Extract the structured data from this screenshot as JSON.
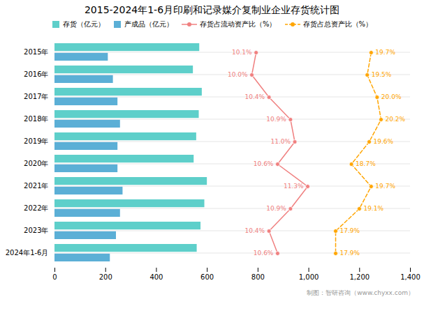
{
  "chart_data": {
    "type": "bar",
    "orientation": "horizontal",
    "title": "2015-2024年1-6月印刷和记录媒介复制业企业存货统计图",
    "categories": [
      "2015年",
      "2016年",
      "2017年",
      "2018年",
      "2019年",
      "2020年",
      "2021年",
      "2022年",
      "2023年",
      "2024年1-6月"
    ],
    "series": [
      {
        "name": "存货（亿元）",
        "color": "#5ECFCA",
        "values": [
          570,
          545,
          580,
          568,
          558,
          548,
          600,
          590,
          575,
          560
        ]
      },
      {
        "name": "产成品（亿元）",
        "color": "#5BAFD6",
        "values": [
          210,
          230,
          248,
          258,
          248,
          248,
          268,
          258,
          242,
          218
        ]
      },
      {
        "name": "存货占流动资产比（%）",
        "type": "line",
        "color": "#F08080",
        "marker": "circle",
        "line_style": "solid",
        "values": [
          10.1,
          10.0,
          10.4,
          10.9,
          11.0,
          10.6,
          11.3,
          10.9,
          10.4,
          10.6
        ],
        "value_labels": [
          "10.1%",
          "10.0%",
          "10.4%",
          "10.9%",
          "11.0%",
          "10.6%",
          "11.3%",
          "10.9%",
          "10.4%",
          "10.6%"
        ],
        "data_labels": true
      },
      {
        "name": "存货占总资产比（%）",
        "type": "line",
        "color": "#FFA500",
        "marker": "circle",
        "line_style": "dashed",
        "values": [
          19.7,
          19.5,
          20.0,
          20.2,
          19.6,
          18.7,
          19.7,
          19.1,
          17.9,
          17.9
        ],
        "value_labels": [
          "19.7%",
          "19.5%",
          "20.0%",
          "20.2%",
          "19.6%",
          "18.7%",
          "19.7%",
          "19.1%",
          "17.9%",
          "17.9%"
        ],
        "data_labels": true
      }
    ],
    "xlim": [
      0,
      1400
    ],
    "xticks": [
      0,
      200,
      400,
      600,
      800,
      1000,
      1200,
      1400
    ],
    "grid": true,
    "legend": "top",
    "caption": "制图：智研咨询（www.chyxx.com）"
  }
}
